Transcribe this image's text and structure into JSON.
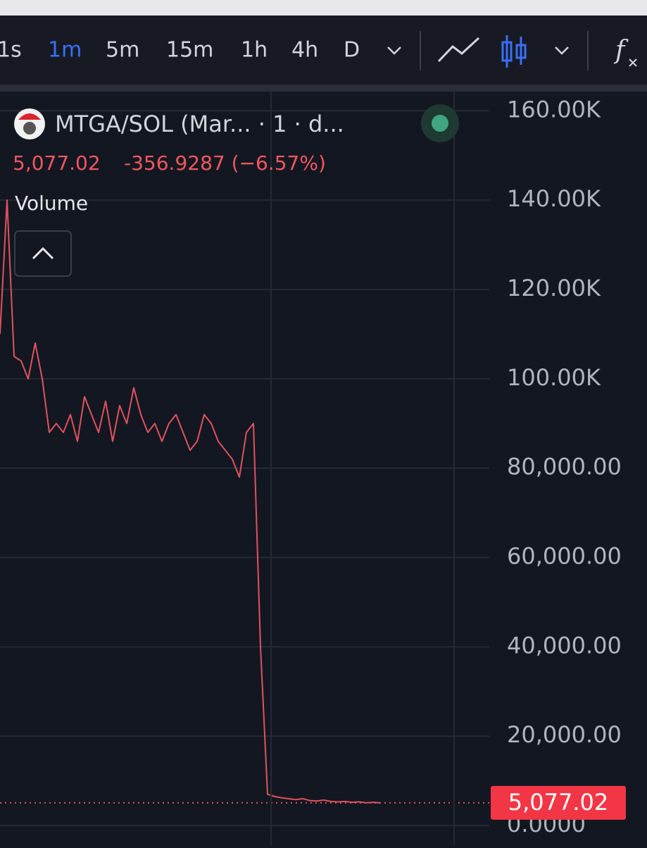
{
  "toolbar": {
    "intervals": [
      "1s",
      "1m",
      "5m",
      "15m",
      "1h",
      "4h",
      "D"
    ]
  },
  "legend": {
    "symbol": "MTGA/SOL (Mar... · 1 · d...",
    "close": "5,077.02",
    "change": "-356.9287 (−6.57%)",
    "indicator": "Volume"
  },
  "price_tag": "5,077.02",
  "chart_data": {
    "type": "line",
    "series": [
      {
        "color": "#e0535c",
        "values": [
          110000,
          140000,
          105000,
          104000,
          100000,
          108000,
          100000,
          88000,
          90000,
          88000,
          92000,
          86000,
          96000,
          92000,
          88000,
          95000,
          86000,
          94000,
          90000,
          98000,
          92000,
          88000,
          90000,
          86000,
          90000,
          92000,
          88000,
          84000,
          86000,
          92000,
          90000,
          86000,
          84000,
          82000,
          78000,
          88000,
          90000,
          40000,
          7000,
          6500,
          6200,
          6000,
          5800,
          6000,
          5600,
          5500,
          5700,
          5400,
          5300,
          5400,
          5200,
          5300,
          5100,
          5200,
          5077.02
        ]
      }
    ],
    "ylim": [
      -4400,
      164300
    ],
    "yticks": [
      {
        "value": 0,
        "label": "0.0000"
      },
      {
        "value": 20000,
        "label": "20,000.00"
      },
      {
        "value": 40000,
        "label": "40,000.00"
      },
      {
        "value": 60000,
        "label": "60,000.00"
      },
      {
        "value": 80000,
        "label": "80,000.00"
      },
      {
        "value": 100000,
        "label": "100.00K"
      },
      {
        "value": 120000,
        "label": "120.00K"
      },
      {
        "value": 140000,
        "label": "140.00K"
      },
      {
        "value": 160000,
        "label": "160.00K"
      }
    ],
    "grid": true
  }
}
